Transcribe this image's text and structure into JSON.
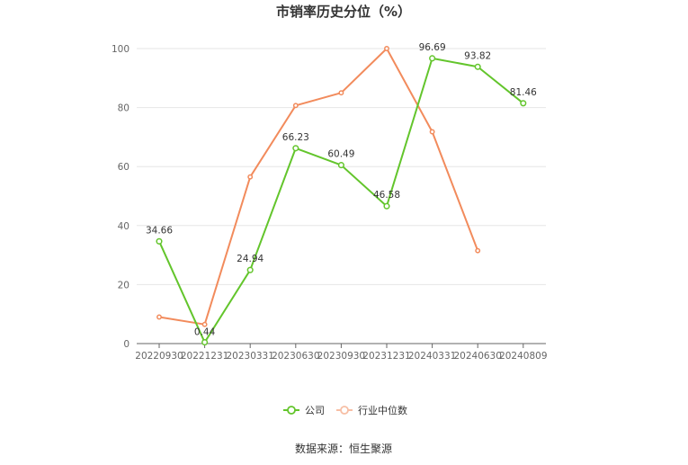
{
  "chart_data": {
    "type": "line",
    "title": "市销率历史分位（%）",
    "categories": [
      "20220930",
      "20221231",
      "20230331",
      "20230630",
      "20230930",
      "20231231",
      "20240331",
      "20240630",
      "20240809"
    ],
    "ylim": [
      0,
      100
    ],
    "yticks": [
      0,
      20,
      40,
      60,
      80,
      100
    ],
    "grid": true,
    "legend_position": "bottom",
    "series": [
      {
        "name": "公司",
        "color": "#63c52c",
        "values": [
          34.66,
          0.44,
          24.94,
          66.23,
          60.49,
          46.58,
          96.69,
          93.82,
          81.46
        ],
        "labels": [
          "34.66",
          "0.44",
          "24.94",
          "66.23",
          "60.49",
          "46.58",
          "96.69",
          "93.82",
          "81.46"
        ]
      },
      {
        "name": "行业中位数",
        "color": "#f28b5c",
        "values": [
          9,
          6.5,
          56.5,
          80.7,
          85,
          100,
          71.8,
          31.5,
          null
        ]
      }
    ]
  },
  "footer": {
    "source": "数据来源：恒生聚源"
  }
}
